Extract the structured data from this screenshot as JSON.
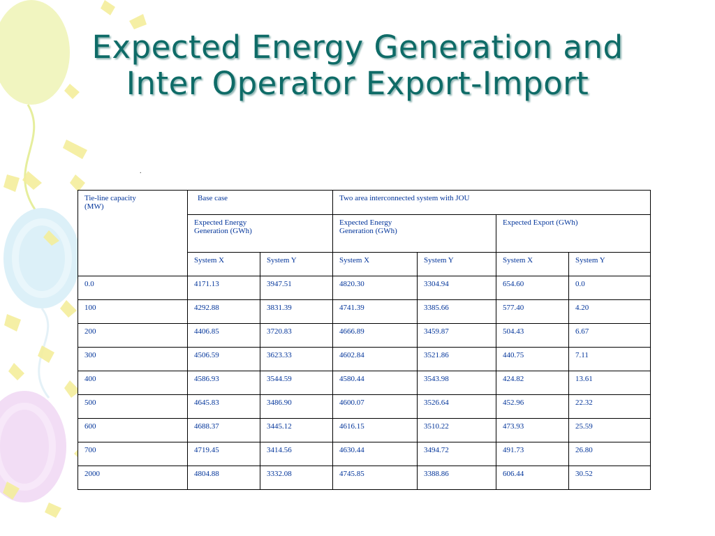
{
  "slide": {
    "title_line1": "Expected Energy Generation and",
    "title_line2": "Inter Operator Export-Import",
    "stray_mark": "."
  },
  "colors": {
    "title": "#0e6b67",
    "table_text": "#003399",
    "balloon_yellow": "#eef3b5",
    "balloon_blue": "#d8eef7",
    "balloon_purple": "#f1d9f4",
    "ribbon": "#f4ee9c"
  },
  "table": {
    "header": {
      "col1": "Tie-line capacity\n(MW)",
      "base_case": "Base case",
      "two_area": "Two area interconnected system with JOU",
      "base_gen": "Expected Energy\nGeneration (GWh)",
      "two_gen": "Expected Energy\n Generation (GWh)",
      "export": "Expected Export (GWh)",
      "sys_x": "System X",
      "sys_y": "System Y"
    },
    "rows": [
      [
        "0.0",
        "4171.13",
        "3947.51",
        "4820.30",
        "3304.94",
        "654.60",
        "0.0"
      ],
      [
        "100",
        "4292.88",
        "3831.39",
        "4741.39",
        "3385.66",
        "577.40",
        "4.20"
      ],
      [
        "200",
        "4406.85",
        "3720.83",
        "4666.89",
        "3459.87",
        "504.43",
        "6.67"
      ],
      [
        "300",
        "4506.59",
        "3623.33",
        "4602.84",
        "3521.86",
        "440.75",
        "7.11"
      ],
      [
        "400",
        "4586.93",
        "3544.59",
        "4580.44",
        "3543.98",
        "424.82",
        "13.61"
      ],
      [
        "500",
        "4645.83",
        "3486.90",
        "4600.07",
        "3526.64",
        "452.96",
        "22.32"
      ],
      [
        "600",
        "4688.37",
        "3445.12",
        "4616.15",
        "3510.22",
        "473.93",
        "25.59"
      ],
      [
        "700",
        "4719.45",
        "3414.56",
        "4630.44",
        "3494.72",
        "491.73",
        "26.80"
      ],
      [
        "2000",
        "4804.88",
        "3332.08",
        "4745.85",
        "3388.86",
        "606.44",
        "30.52"
      ]
    ]
  }
}
